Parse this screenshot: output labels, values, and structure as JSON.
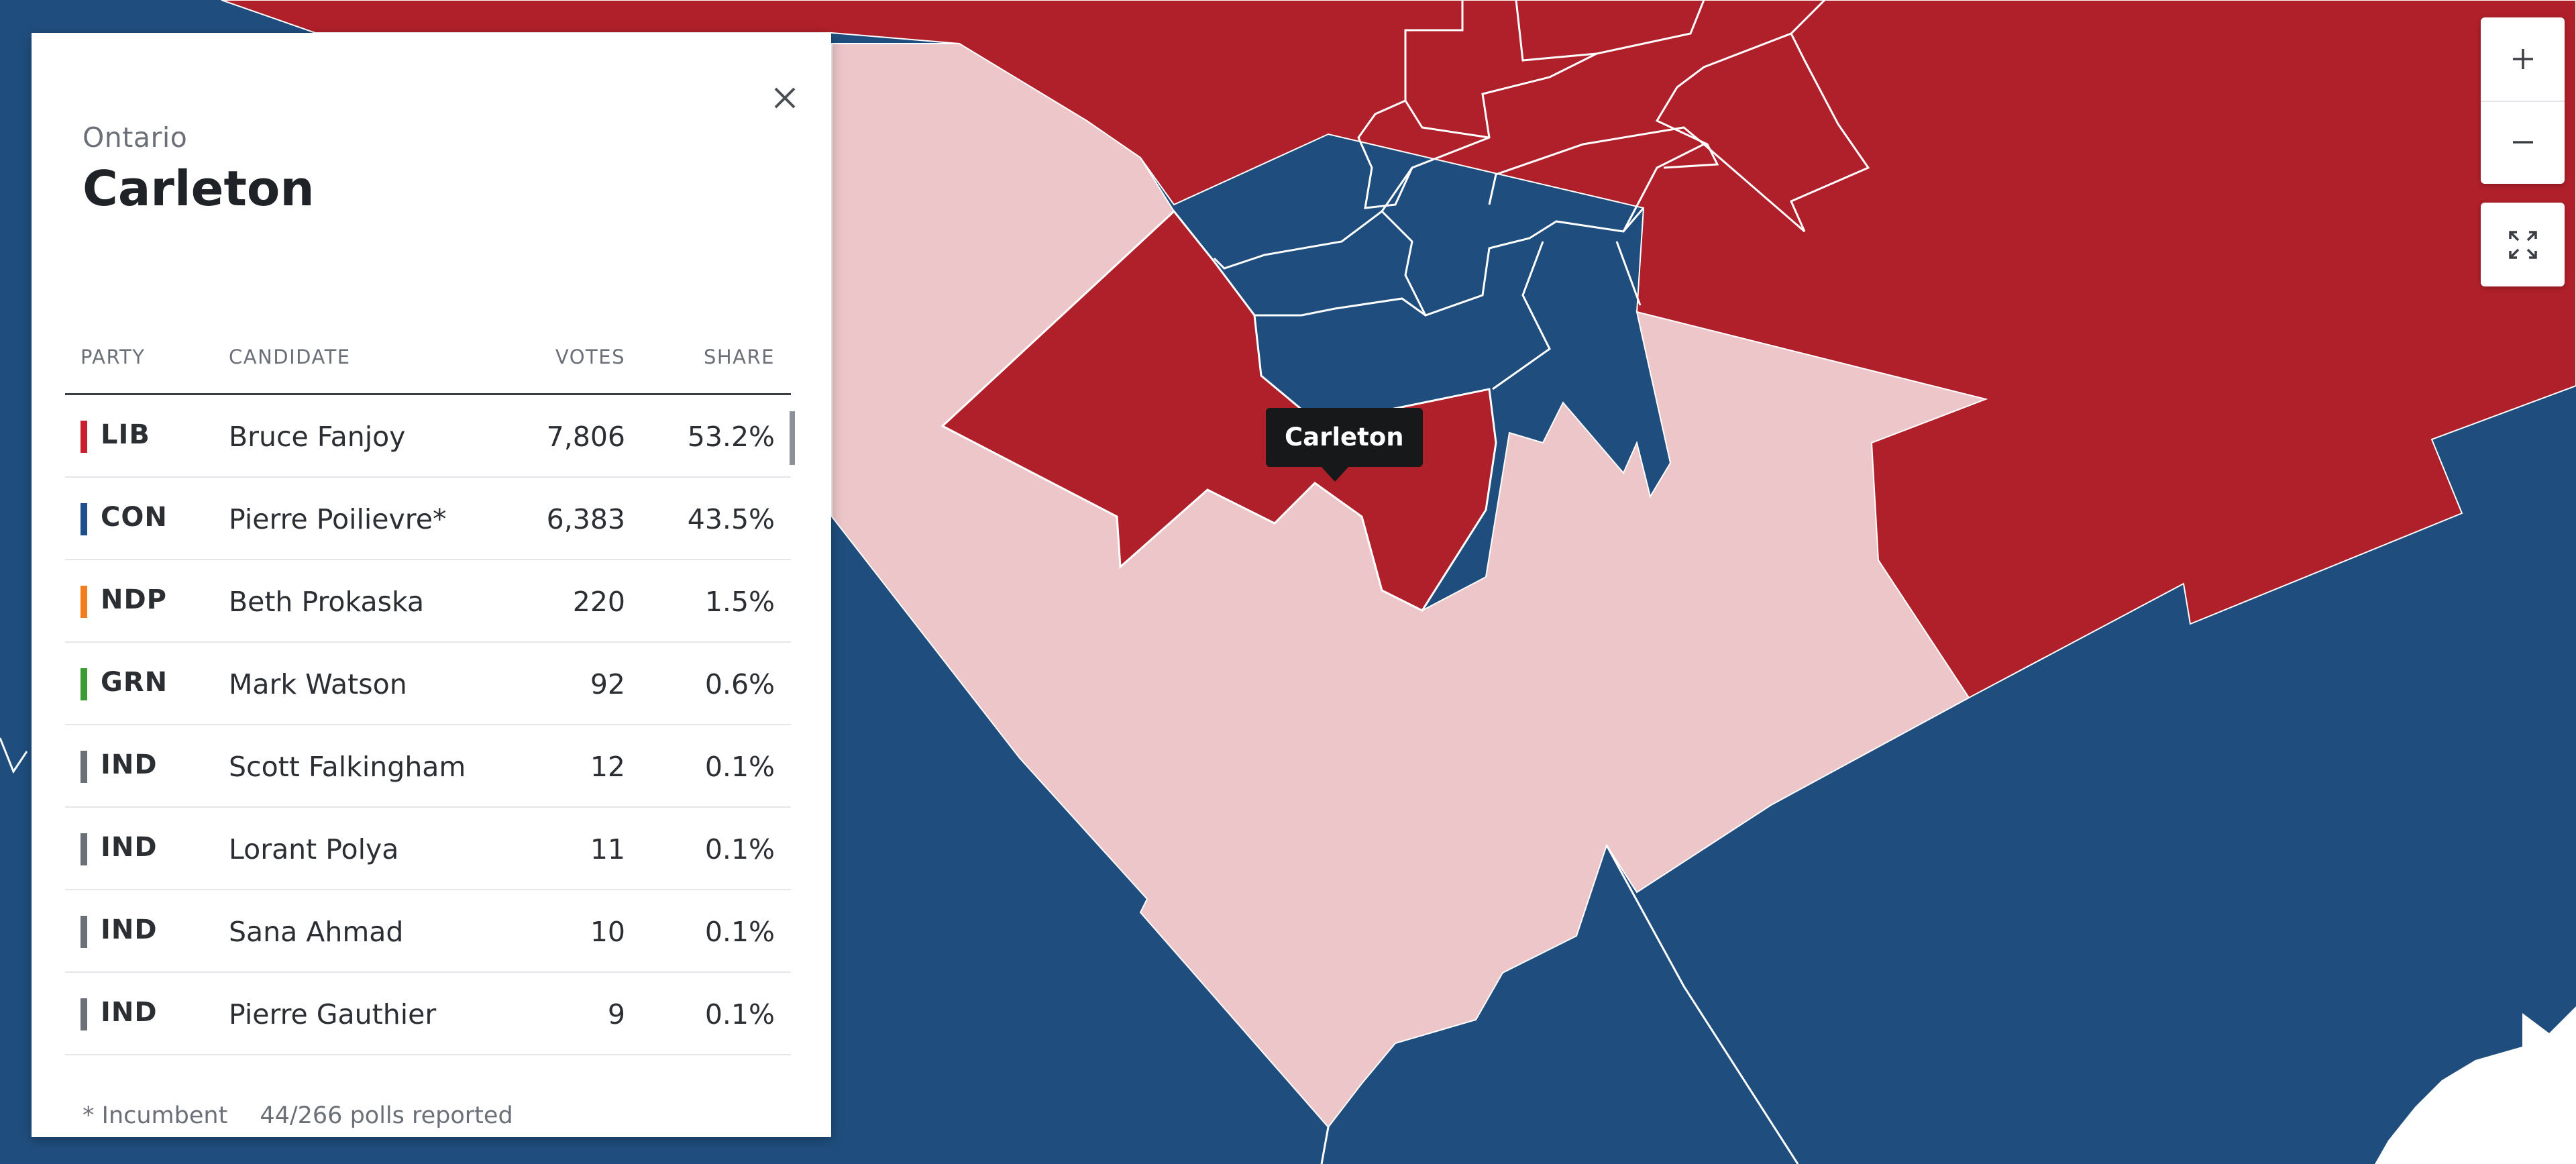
{
  "panel": {
    "province": "Ontario",
    "riding": "Carleton",
    "close_icon": "close-icon",
    "headers": {
      "party": "PARTY",
      "candidate": "CANDIDATE",
      "votes": "VOTES",
      "share": "SHARE"
    },
    "results": [
      {
        "party": "LIB",
        "candidate": "Bruce Fanjoy",
        "votes": "7,806",
        "share": "53.2%",
        "color": "#c8202f"
      },
      {
        "party": "CON",
        "candidate": "Pierre Poilievre*",
        "votes": "6,383",
        "share": "43.5%",
        "color": "#1f4e8c"
      },
      {
        "party": "NDP",
        "candidate": "Beth Prokaska",
        "votes": "220",
        "share": "1.5%",
        "color": "#f37d1c"
      },
      {
        "party": "GRN",
        "candidate": "Mark Watson",
        "votes": "92",
        "share": "0.6%",
        "color": "#3d9b35"
      },
      {
        "party": "IND",
        "candidate": "Scott Falkingham",
        "votes": "12",
        "share": "0.1%",
        "color": "#6b7078"
      },
      {
        "party": "IND",
        "candidate": "Lorant Polya",
        "votes": "11",
        "share": "0.1%",
        "color": "#6b7078"
      },
      {
        "party": "IND",
        "candidate": "Sana Ahmad",
        "votes": "10",
        "share": "0.1%",
        "color": "#6b7078"
      },
      {
        "party": "IND",
        "candidate": "Pierre Gauthier",
        "votes": "9",
        "share": "0.1%",
        "color": "#6b7078"
      }
    ],
    "footer": {
      "incumbent_note": "* Incumbent",
      "polls_reported": "44/266 polls reported"
    }
  },
  "map": {
    "tooltip": "Carleton",
    "colors": {
      "liberal": "#b0202b",
      "liberal_light": "#ecc6c8",
      "conservative": "#1f4e7e",
      "water": "#ffffff",
      "border": "#ffffff"
    },
    "controls": {
      "zoom_in_icon": "plus-icon",
      "zoom_out_icon": "minus-icon",
      "fullscreen_icon": "expand-icon"
    }
  }
}
